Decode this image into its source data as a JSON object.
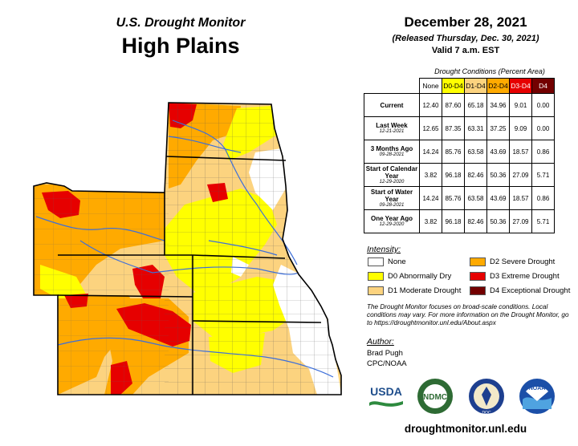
{
  "header": {
    "subtitle": "U.S. Drought Monitor",
    "region": "High Plains",
    "date": "December 28, 2021",
    "released": "(Released Thursday, Dec. 30, 2021)",
    "valid": "Valid 7 a.m. EST"
  },
  "table": {
    "caption": "Drought Conditions (Percent Area)",
    "columns": [
      {
        "label": "None",
        "color": "#ffffff",
        "text_color": "#000000"
      },
      {
        "label": "D0-D4",
        "color": "#ffff00",
        "text_color": "#000000"
      },
      {
        "label": "D1-D4",
        "color": "#fcd37f",
        "text_color": "#000000"
      },
      {
        "label": "D2-D4",
        "color": "#ffaa00",
        "text_color": "#000000"
      },
      {
        "label": "D3-D4",
        "color": "#e60000",
        "text_color": "#ffffff"
      },
      {
        "label": "D4",
        "color": "#730000",
        "text_color": "#ffffff"
      }
    ],
    "rows": [
      {
        "label": "Current",
        "date": "",
        "values": [
          "12.40",
          "87.60",
          "65.18",
          "34.96",
          "9.01",
          "0.00"
        ]
      },
      {
        "label": "Last Week",
        "date": "12-21-2021",
        "values": [
          "12.65",
          "87.35",
          "63.31",
          "37.25",
          "9.09",
          "0.00"
        ]
      },
      {
        "label": "3 Months Ago",
        "date": "09-28-2021",
        "values": [
          "14.24",
          "85.76",
          "63.58",
          "43.69",
          "18.57",
          "0.86"
        ]
      },
      {
        "label": "Start of Calendar Year",
        "date": "12-29-2020",
        "values": [
          "3.82",
          "96.18",
          "82.46",
          "50.36",
          "27.09",
          "5.71"
        ]
      },
      {
        "label": "Start of Water Year",
        "date": "09-28-2021",
        "values": [
          "14.24",
          "85.76",
          "63.58",
          "43.69",
          "18.57",
          "0.86"
        ]
      },
      {
        "label": "One Year Ago",
        "date": "12-29-2020",
        "values": [
          "3.82",
          "96.18",
          "82.46",
          "50.36",
          "27.09",
          "5.71"
        ]
      }
    ]
  },
  "legend": {
    "title": "Intensity:",
    "items": [
      {
        "label": "None",
        "color": "#ffffff"
      },
      {
        "label": "D0 Abnormally Dry",
        "color": "#ffff00"
      },
      {
        "label": "D1 Moderate Drought",
        "color": "#fcd37f"
      },
      {
        "label": "D2 Severe Drought",
        "color": "#ffaa00"
      },
      {
        "label": "D3 Extreme Drought",
        "color": "#e60000"
      },
      {
        "label": "D4 Exceptional Drought",
        "color": "#730000"
      }
    ]
  },
  "note": "The Drought Monitor focuses on broad-scale conditions. Local conditions may vary. For more information on the Drought Monitor, go to https://droughtmonitor.unl.edu/About.aspx",
  "author": {
    "title": "Author:",
    "name": "Brad Pugh",
    "org": "CPC/NOAA"
  },
  "logos": {
    "usda": "USDA",
    "ndmc": "NDMC",
    "doc": "DOC",
    "noaa": "NOAA",
    "icons": [
      "usda-logo",
      "ndmc-logo",
      "commerce-seal-logo",
      "noaa-logo"
    ]
  },
  "url": "droughtmonitor.unl.edu"
}
